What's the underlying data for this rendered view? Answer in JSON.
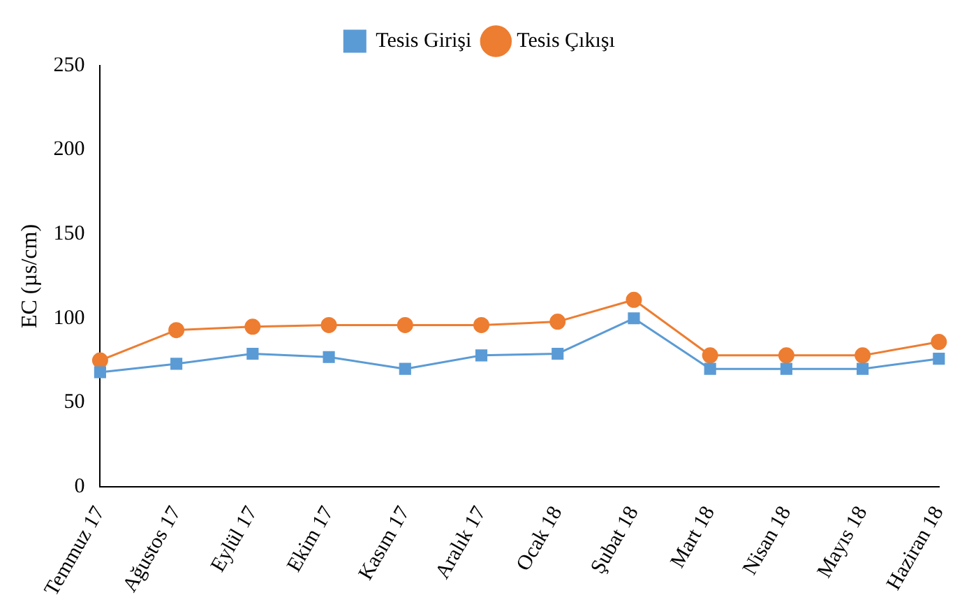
{
  "chart_data": {
    "type": "line",
    "ylabel": "EC (µs/cm)",
    "categories": [
      "Temmuz 17",
      "Ağustos 17",
      "Eylül 17",
      "Ekim 17",
      "Kasım 17",
      "Aralık 17",
      "Ocak 18",
      "Şubat 18",
      "Mart 18",
      "Nisan 18",
      "Mayıs 18",
      "Haziran 18"
    ],
    "series": [
      {
        "name": "Tesis Girişi",
        "color": "#5b9bd5",
        "marker": "square",
        "values": [
          68,
          73,
          79,
          77,
          70,
          78,
          79,
          100,
          70,
          70,
          70,
          76
        ]
      },
      {
        "name": "Tesis Çıkışı",
        "color": "#ed7d31",
        "marker": "circle",
        "values": [
          75,
          93,
          95,
          96,
          96,
          96,
          98,
          111,
          78,
          78,
          78,
          86
        ]
      }
    ],
    "ylim": [
      0,
      250
    ],
    "yticks": [
      0,
      50,
      100,
      150,
      200,
      250
    ],
    "grid": false,
    "legend": "top"
  }
}
